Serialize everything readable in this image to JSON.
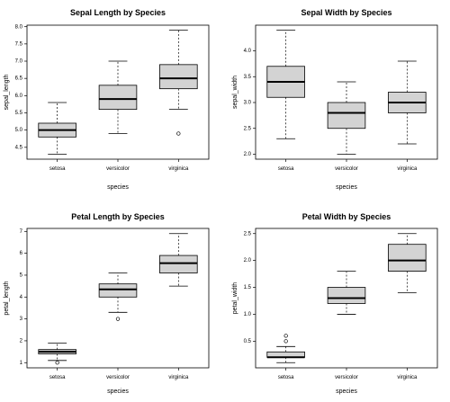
{
  "chart_data": [
    {
      "type": "box",
      "title": "Sepal Length by Species",
      "xlabel": "species",
      "ylabel": "sepal_length",
      "categories": [
        "setosa",
        "versicolor",
        "virginica"
      ],
      "ylim": [
        4.3,
        7.9
      ],
      "yticks": [
        4.5,
        5.0,
        5.5,
        6.0,
        6.5,
        7.0,
        7.5,
        8.0
      ],
      "ytick_labels": [
        "4.5",
        "5.0",
        "5.5",
        "6.0",
        "6.5",
        "7.0",
        "7.5",
        "8.0"
      ],
      "boxes": [
        {
          "min": 4.3,
          "q1": 4.8,
          "median": 5.0,
          "q3": 5.2,
          "max": 5.8,
          "outliers": []
        },
        {
          "min": 4.9,
          "q1": 5.6,
          "median": 5.9,
          "q3": 6.3,
          "max": 7.0,
          "outliers": []
        },
        {
          "min": 5.6,
          "q1": 6.2,
          "median": 6.5,
          "q3": 6.9,
          "max": 7.9,
          "outliers": [
            4.9
          ]
        }
      ]
    },
    {
      "type": "box",
      "title": "Sepal Width by Species",
      "xlabel": "species",
      "ylabel": "sepal_width",
      "categories": [
        "setosa",
        "versicolor",
        "virginica"
      ],
      "ylim": [
        2.0,
        4.4
      ],
      "yticks": [
        2.0,
        2.5,
        3.0,
        3.5,
        4.0
      ],
      "ytick_labels": [
        "2.0",
        "2.5",
        "3.0",
        "3.5",
        "4.0"
      ],
      "boxes": [
        {
          "min": 2.3,
          "q1": 3.1,
          "median": 3.4,
          "q3": 3.7,
          "max": 4.4,
          "outliers": []
        },
        {
          "min": 2.0,
          "q1": 2.5,
          "median": 2.8,
          "q3": 3.0,
          "max": 3.4,
          "outliers": []
        },
        {
          "min": 2.2,
          "q1": 2.8,
          "median": 3.0,
          "q3": 3.2,
          "max": 3.8,
          "outliers": []
        }
      ]
    },
    {
      "type": "box",
      "title": "Petal Length by Species",
      "xlabel": "species",
      "ylabel": "petal_length",
      "categories": [
        "setosa",
        "versicolor",
        "virginica"
      ],
      "ylim": [
        1.0,
        6.9
      ],
      "yticks": [
        1,
        2,
        3,
        4,
        5,
        6,
        7
      ],
      "ytick_labels": [
        "1",
        "2",
        "3",
        "4",
        "5",
        "6",
        "7"
      ],
      "boxes": [
        {
          "min": 1.1,
          "q1": 1.4,
          "median": 1.5,
          "q3": 1.6,
          "max": 1.9,
          "outliers": [
            1.0
          ]
        },
        {
          "min": 3.3,
          "q1": 4.0,
          "median": 4.35,
          "q3": 4.6,
          "max": 5.1,
          "outliers": [
            3.0
          ]
        },
        {
          "min": 4.5,
          "q1": 5.1,
          "median": 5.55,
          "q3": 5.9,
          "max": 6.9,
          "outliers": []
        }
      ]
    },
    {
      "type": "box",
      "title": "Petal Width by Species",
      "xlabel": "species",
      "ylabel": "petal_width",
      "categories": [
        "setosa",
        "versicolor",
        "virginica"
      ],
      "ylim": [
        0.1,
        2.5
      ],
      "yticks": [
        0.5,
        1.0,
        1.5,
        2.0,
        2.5
      ],
      "ytick_labels": [
        "0.5",
        "1.0",
        "1.5",
        "2.0",
        "2.5"
      ],
      "boxes": [
        {
          "min": 0.1,
          "q1": 0.2,
          "median": 0.2,
          "q3": 0.3,
          "max": 0.4,
          "outliers": [
            0.5,
            0.6
          ]
        },
        {
          "min": 1.0,
          "q1": 1.2,
          "median": 1.3,
          "q3": 1.5,
          "max": 1.8,
          "outliers": []
        },
        {
          "min": 1.4,
          "q1": 1.8,
          "median": 2.0,
          "q3": 2.3,
          "max": 2.5,
          "outliers": []
        }
      ]
    }
  ],
  "style": {
    "box_fill": "#d3d3d3",
    "stroke": "#000000",
    "outlier_marker": "open-circle",
    "grid": false,
    "legend": "none"
  }
}
